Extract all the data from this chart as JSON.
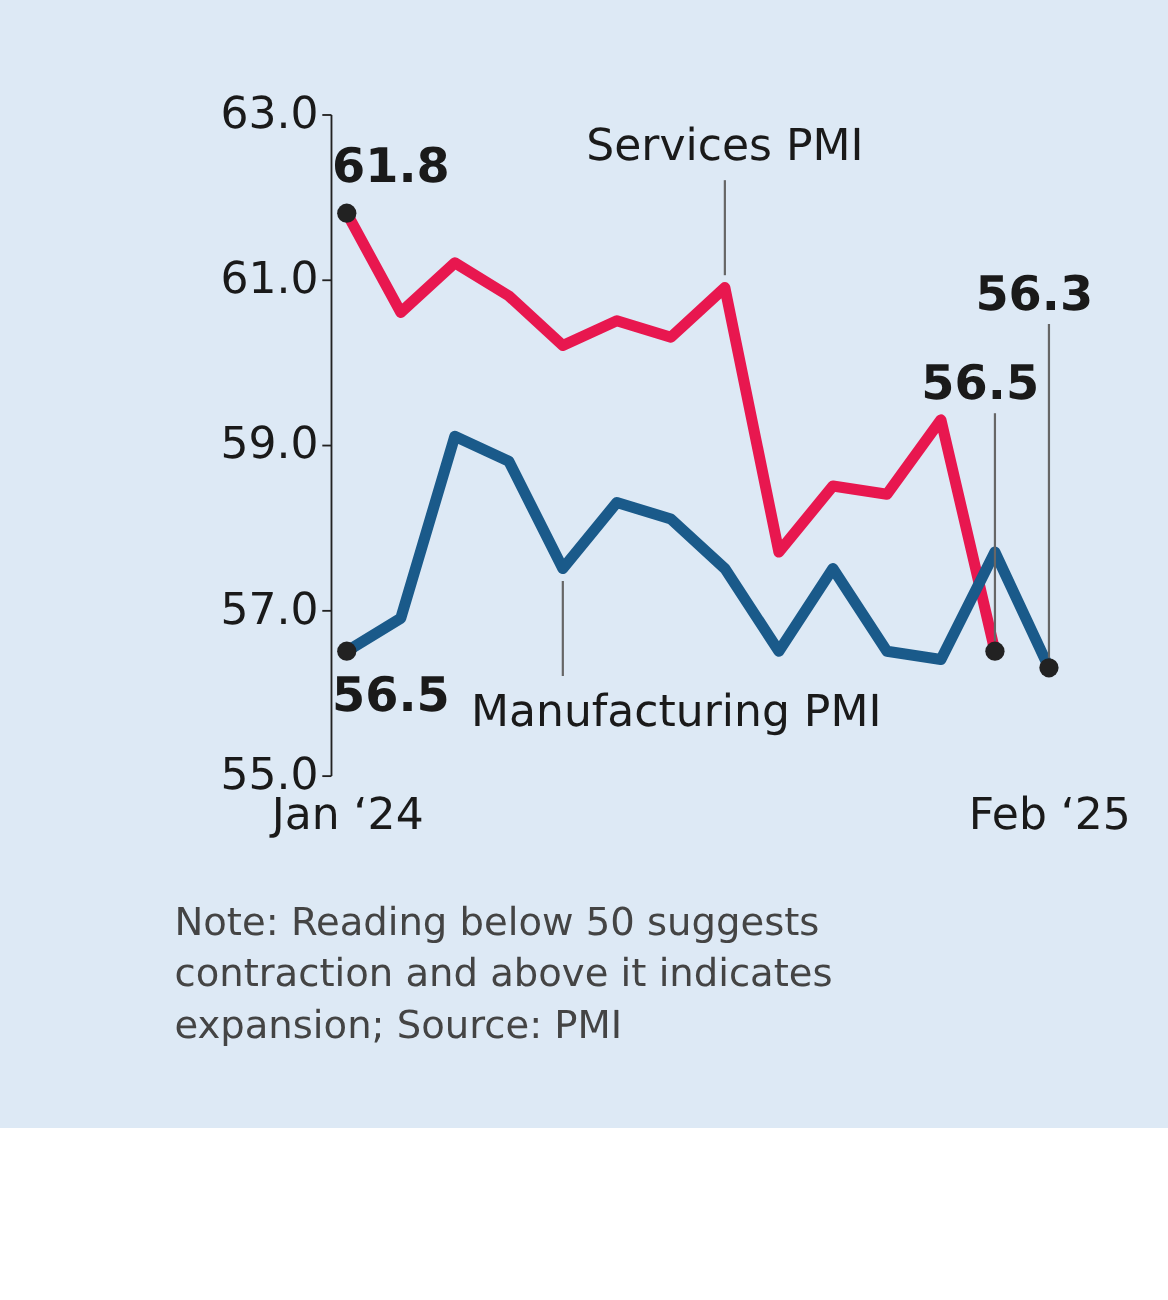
{
  "chart_data": {
    "type": "line",
    "categories": [
      "Jan ‘24",
      null,
      null,
      null,
      null,
      null,
      null,
      null,
      null,
      null,
      null,
      null,
      null,
      "Feb ‘25"
    ],
    "series": [
      {
        "name": "Services PMI",
        "color": "#e8174f",
        "values": [
          61.8,
          60.6,
          61.2,
          60.8,
          60.2,
          60.5,
          60.3,
          60.9,
          57.7,
          58.5,
          58.4,
          59.3,
          56.5,
          null
        ],
        "value_labels": [
          "61.8",
          null,
          null,
          null,
          null,
          null,
          null,
          null,
          null,
          null,
          null,
          null,
          "56.5",
          null
        ]
      },
      {
        "name": "Manufacturing PMI",
        "color": "#1a5a8a",
        "values": [
          56.5,
          56.9,
          59.1,
          58.8,
          57.5,
          58.3,
          58.1,
          57.5,
          56.5,
          57.5,
          56.5,
          56.4,
          57.7,
          56.3
        ],
        "value_labels": [
          "56.5",
          null,
          null,
          null,
          null,
          null,
          null,
          null,
          null,
          null,
          null,
          null,
          null,
          "56.3"
        ]
      }
    ],
    "ylim": [
      55,
      63
    ],
    "yticks": [
      {
        "value": 55,
        "label": "55.0"
      },
      {
        "value": 57,
        "label": "57.0"
      },
      {
        "value": 59,
        "label": "59.0"
      },
      {
        "value": 61,
        "label": "61.0"
      },
      {
        "value": 63,
        "label": "63.0"
      }
    ],
    "grid": false,
    "legend": false,
    "marker": "none",
    "line_style": "solid",
    "annotations": [
      "Note: Reading below 50 suggests contraction and above it indicates expansion; Source: PMI"
    ]
  }
}
